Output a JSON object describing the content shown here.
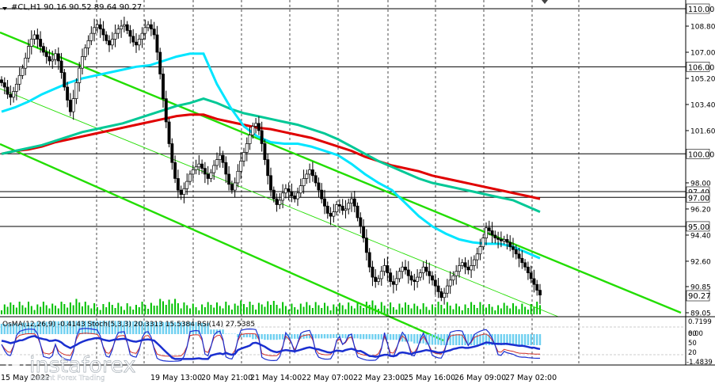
{
  "header": {
    "symbol_line": "#CL,H1  90.16 90.52 89.64 90.27"
  },
  "watermark": {
    "brand": "instaforex",
    "tagline": "Instant Forex Trading"
  },
  "colors": {
    "background": "#ffffff",
    "grid": "#000000",
    "price": "#000000",
    "volume": "#00c000",
    "ema_fast": "#00e5ff",
    "ema_mid": "#00c896",
    "ema_slow": "#e00000",
    "channel": "#22dd00",
    "osma": "#6fd0f0",
    "stoch_main": "#1a2fd0",
    "stoch_signal": "#d0302a",
    "rsi": "#1aa0d0"
  },
  "chart_data": {
    "type": "line",
    "price_axis": {
      "ticks": [
        "108.80",
        "107.00",
        "105.20",
        "103.40",
        "101.60",
        "98.00",
        "96.20",
        "94.40",
        "92.60",
        "90.85",
        "89.05"
      ],
      "levels": [
        "110.00",
        "106.00",
        "100.00",
        "97.40",
        "97.00",
        "95.00"
      ],
      "current": "90.27",
      "ylim": [
        89.05,
        110.0
      ]
    },
    "time_labels": [
      "15 May 2022",
      "19 May 13:00",
      "20 May 21:00",
      "21 May 14:00",
      "22 May 07:00",
      "22 May 23:00",
      "25 May 16:00",
      "26 May 09:00",
      "27 May 02:00"
    ],
    "series": [
      {
        "values": [
          104.9,
          104.6,
          104.1,
          103.9,
          104.3,
          104.8,
          105.4,
          105.9,
          106.6,
          107.4,
          107.9,
          108.2,
          107.9,
          107.4,
          107.0,
          106.7,
          106.4,
          106.5,
          106.9,
          106.4,
          105.6,
          104.6,
          103.7,
          102.9,
          103.8,
          104.9,
          105.9,
          106.7,
          107.3,
          107.8,
          108.3,
          108.7,
          108.9,
          108.6,
          108.2,
          107.8,
          107.5,
          107.9,
          108.3,
          108.6,
          108.8,
          108.9,
          108.5,
          108.1,
          107.7,
          107.5,
          107.9,
          108.3,
          108.7,
          108.9,
          108.6,
          108.2,
          107.0,
          105.5,
          103.8,
          102.2,
          100.7,
          99.4,
          98.3,
          97.5,
          97.2,
          97.6,
          98.1,
          98.6,
          98.9,
          99.1,
          99.3,
          99.0,
          98.6,
          98.3,
          98.7,
          99.2,
          99.6,
          99.9,
          99.4,
          98.6,
          97.9,
          97.5,
          98.0,
          98.8,
          99.5,
          100.1,
          100.7,
          101.3,
          101.9,
          102.1,
          101.6,
          100.7,
          99.6,
          98.5,
          97.5,
          96.9,
          96.5,
          96.8,
          97.3,
          97.6,
          97.4,
          97.1,
          96.9,
          97.3,
          97.8,
          98.3,
          98.6,
          98.9,
          98.5,
          98.0,
          97.5,
          96.9,
          96.4,
          95.9,
          95.7,
          96.0,
          96.5,
          96.4,
          96.1,
          96.2,
          96.6,
          96.9,
          96.4,
          95.6,
          95.0,
          94.2,
          93.2,
          92.2,
          91.5,
          91.2,
          91.4,
          91.9,
          92.3,
          91.8,
          91.2,
          91.0,
          91.4,
          91.9,
          92.2,
          92.0,
          91.6,
          91.3,
          91.2,
          91.5,
          91.8,
          92.2,
          91.9,
          91.6,
          91.3,
          90.9,
          90.5,
          90.1,
          90.4,
          90.9,
          91.3,
          91.6,
          91.9,
          92.3,
          92.5,
          92.2,
          92.0,
          92.3,
          92.7,
          93.1,
          93.6,
          94.2,
          94.9,
          94.7,
          94.4,
          94.2,
          94.1,
          94.0,
          94.1,
          93.9,
          93.6,
          93.4,
          93.1,
          92.8,
          92.5,
          92.2,
          91.8,
          91.4,
          91.0,
          90.6,
          90.27
        ]
      },
      {
        "values": [
          102.9,
          103.2,
          103.6,
          104.1,
          104.5,
          104.9,
          105.2,
          105.4,
          105.6,
          105.8,
          106.0,
          106.1,
          106.4,
          106.7,
          106.9,
          106.9,
          104.8,
          103.2,
          101.9,
          101.2,
          100.8,
          100.7,
          100.7,
          100.5,
          100.2,
          99.9,
          99.3,
          98.6,
          98.0,
          97.5,
          96.6,
          95.7,
          95.0,
          94.5,
          94.1,
          93.9,
          93.8,
          93.8,
          93.6,
          93.2,
          92.8
        ]
      },
      {
        "values": [
          100.0,
          100.2,
          100.4,
          100.6,
          100.9,
          101.2,
          101.5,
          101.7,
          101.9,
          102.1,
          102.4,
          102.7,
          103.0,
          103.3,
          103.5,
          103.8,
          103.5,
          103.1,
          102.8,
          102.6,
          102.4,
          102.2,
          102.0,
          101.7,
          101.4,
          101.0,
          100.5,
          100.0,
          99.5,
          99.1,
          98.7,
          98.3,
          98.0,
          97.8,
          97.6,
          97.4,
          97.2,
          97.0,
          96.8,
          96.4,
          96.0
        ]
      },
      {
        "values": [
          100.0,
          100.2,
          100.3,
          100.5,
          100.8,
          101.0,
          101.2,
          101.4,
          101.6,
          101.8,
          102.0,
          102.2,
          102.4,
          102.6,
          102.7,
          102.7,
          102.4,
          102.2,
          102.0,
          101.8,
          101.7,
          101.5,
          101.3,
          101.1,
          100.8,
          100.5,
          100.2,
          99.8,
          99.5,
          99.2,
          99.0,
          98.8,
          98.5,
          98.3,
          98.1,
          97.9,
          97.7,
          97.5,
          97.3,
          97.1,
          96.9
        ]
      }
    ],
    "indicators": {
      "label": "OsMA(12,26,9) -0.4143  Stoch(5,3,3) 20.3313 15.5384  RSI(14) 27.5385",
      "ticks": [
        "0.7199",
        "0.00",
        "80",
        "50",
        "20",
        "-1.4839"
      ],
      "ylim": [
        -1.4839,
        0.7199
      ]
    }
  }
}
